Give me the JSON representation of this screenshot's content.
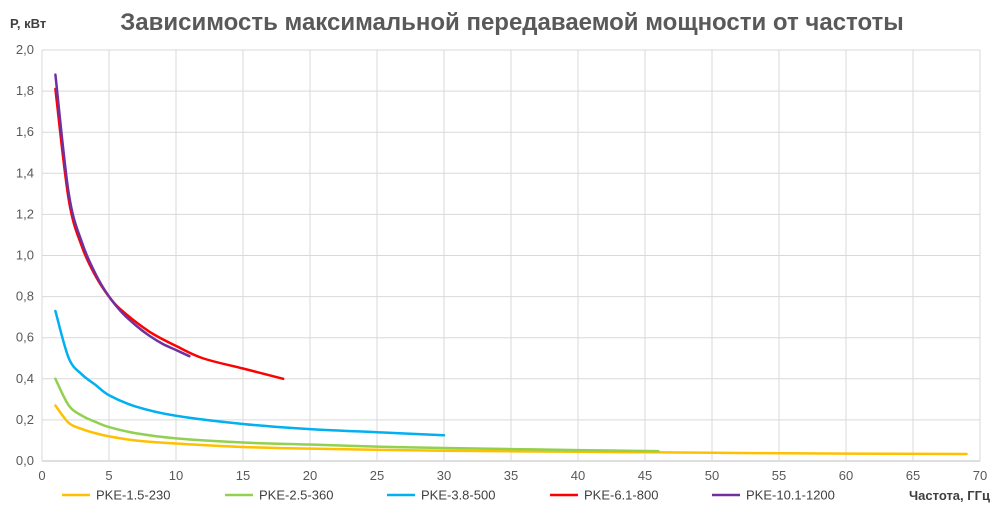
{
  "chart_data": {
    "type": "line",
    "title": "Зависимость максимальной передаваемой мощности от частоты",
    "xlabel": "Частота, ГГц",
    "ylabel": "Р, кВт",
    "xlim": [
      0,
      70
    ],
    "ylim": [
      0,
      2.0
    ],
    "x_ticks": [
      "0",
      "5",
      "10",
      "15",
      "20",
      "25",
      "30",
      "35",
      "40",
      "45",
      "50",
      "55",
      "60",
      "65",
      "70"
    ],
    "y_ticks": [
      "0,0",
      "0,2",
      "0,4",
      "0,6",
      "0,8",
      "1,0",
      "1,2",
      "1,4",
      "1,6",
      "1,8",
      "2,0"
    ],
    "grid": true,
    "legend_position": "bottom",
    "series": [
      {
        "name": "PKE-1.5-230",
        "color": "#FFC000",
        "x": [
          1,
          2,
          3,
          4,
          5,
          7,
          10,
          15,
          20,
          30,
          40,
          50,
          60,
          69
        ],
        "y": [
          0.27,
          0.185,
          0.155,
          0.135,
          0.12,
          0.1,
          0.085,
          0.068,
          0.06,
          0.05,
          0.045,
          0.04,
          0.036,
          0.034
        ]
      },
      {
        "name": "PKE-2.5-360",
        "color": "#92D050",
        "x": [
          1,
          2,
          3,
          4,
          5,
          7,
          10,
          15,
          20,
          25,
          30,
          35,
          40,
          46
        ],
        "y": [
          0.4,
          0.27,
          0.22,
          0.19,
          0.165,
          0.135,
          0.11,
          0.09,
          0.08,
          0.07,
          0.063,
          0.058,
          0.053,
          0.048
        ]
      },
      {
        "name": "PKE-3.8-500",
        "color": "#00B0F0",
        "x": [
          1,
          2,
          3,
          4,
          5,
          7,
          10,
          15,
          20,
          25,
          30
        ],
        "y": [
          0.73,
          0.5,
          0.42,
          0.37,
          0.32,
          0.265,
          0.22,
          0.18,
          0.155,
          0.14,
          0.125
        ]
      },
      {
        "name": "PKE-6.1-800",
        "color": "#FF0000",
        "x": [
          1,
          2,
          3,
          4,
          5,
          6,
          8,
          10,
          12,
          15,
          18
        ],
        "y": [
          1.81,
          1.27,
          1.04,
          0.9,
          0.8,
          0.73,
          0.63,
          0.56,
          0.5,
          0.45,
          0.4
        ]
      },
      {
        "name": "PKE-10.1-1200",
        "color": "#7030A0",
        "x": [
          1,
          2,
          3,
          4,
          5,
          6,
          7,
          8,
          9,
          10,
          11
        ],
        "y": [
          1.88,
          1.3,
          1.06,
          0.91,
          0.8,
          0.72,
          0.66,
          0.61,
          0.57,
          0.54,
          0.51
        ]
      }
    ]
  }
}
